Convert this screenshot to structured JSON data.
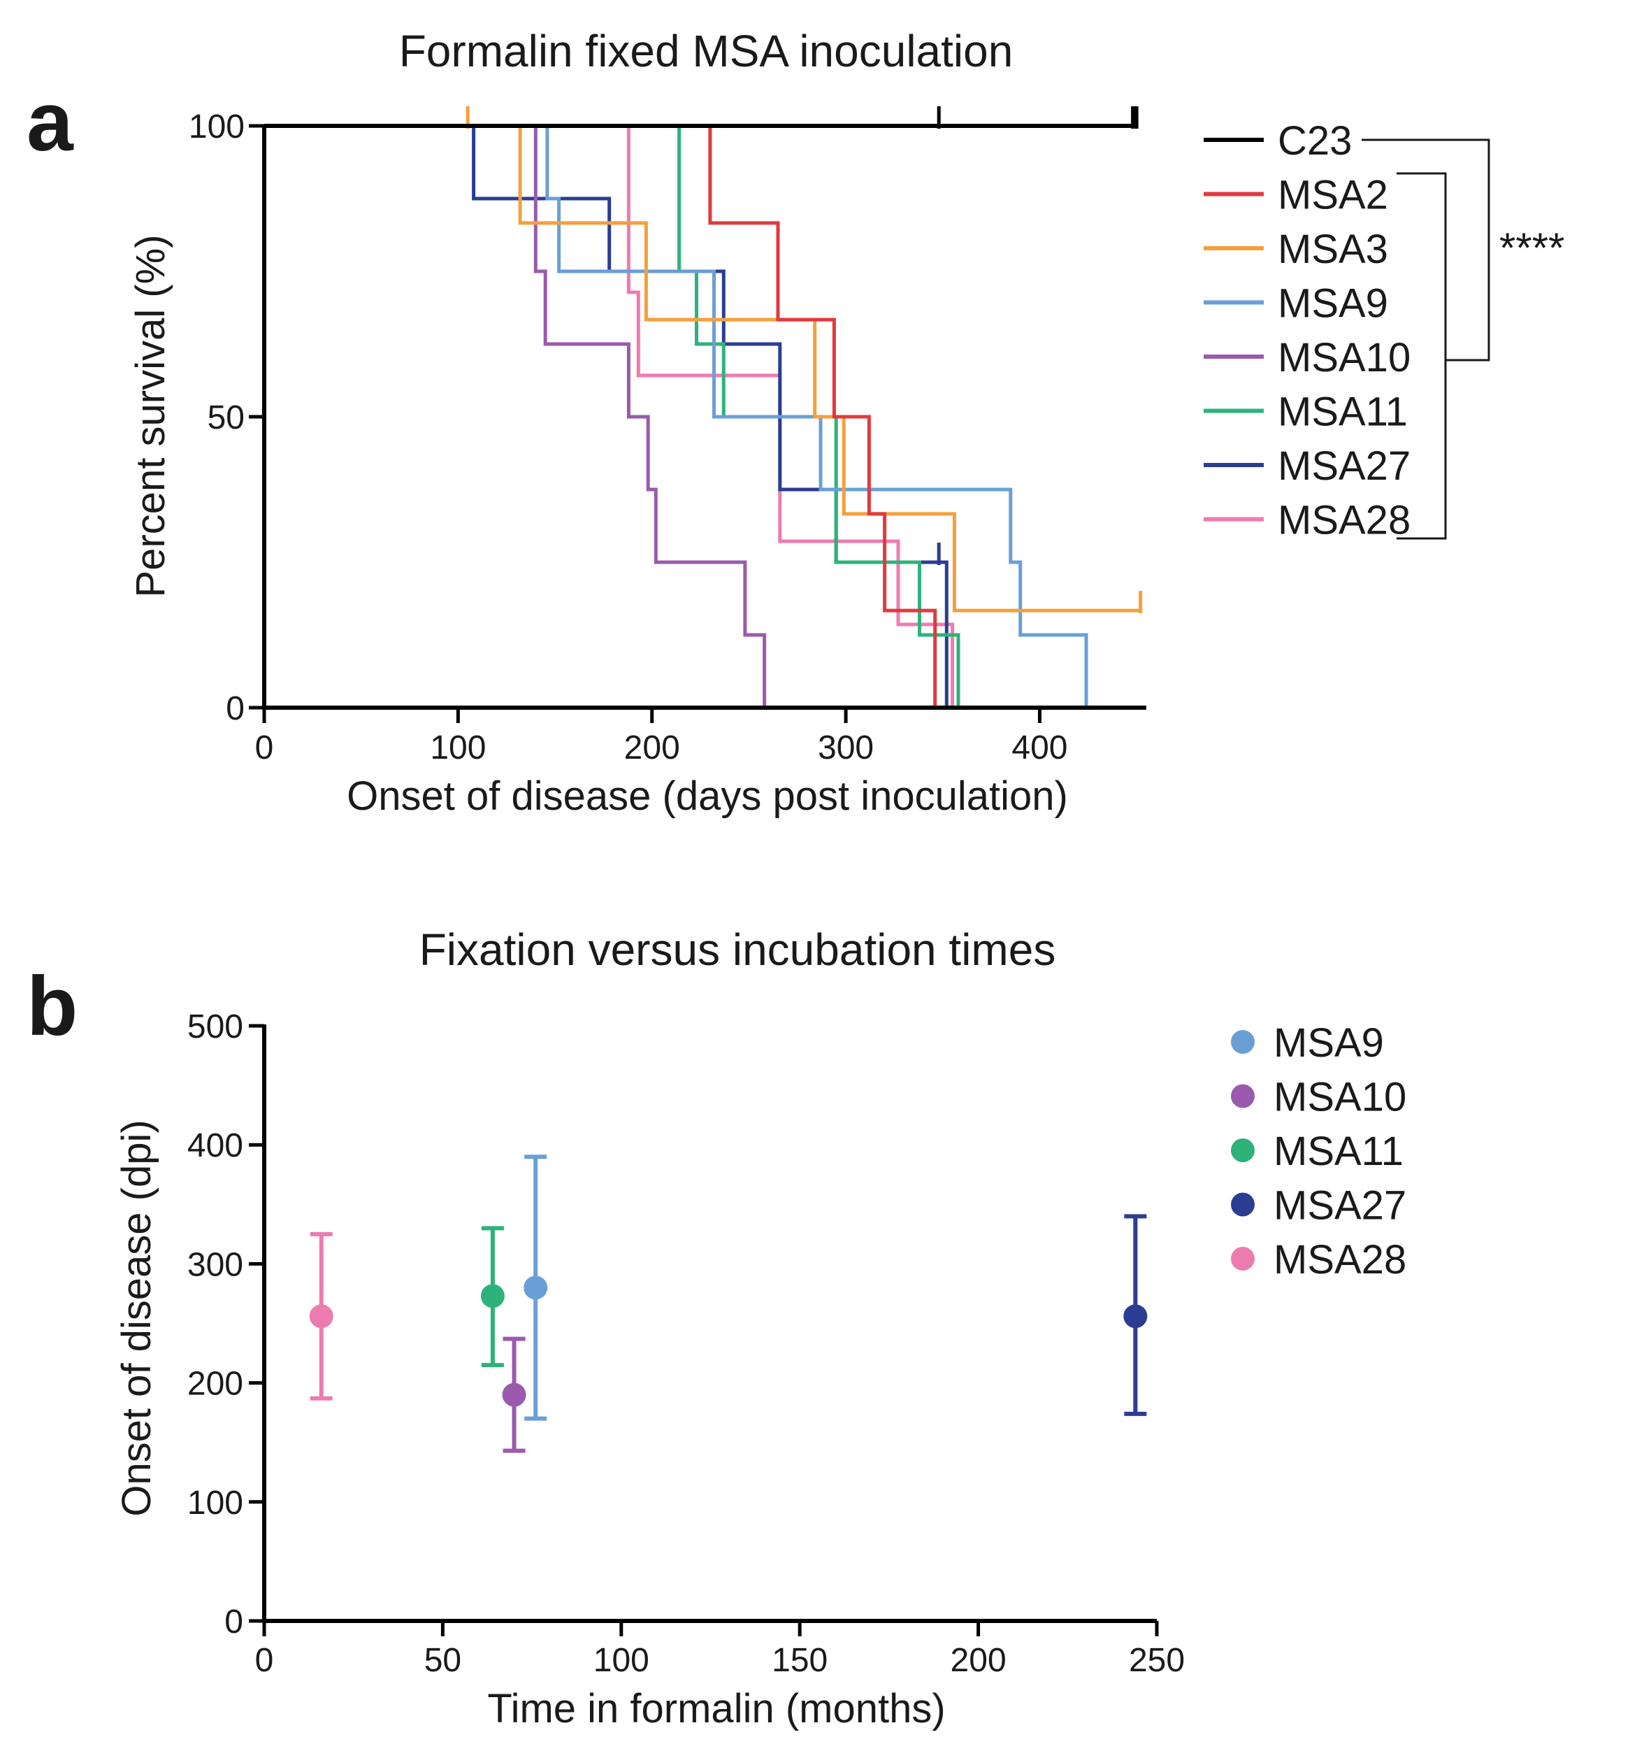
{
  "colors": {
    "C23": "#000000",
    "MSA2": "#e03a3e",
    "MSA3": "#f3a03c",
    "MSA9": "#6a9fd6",
    "MSA10": "#9a5aae",
    "MSA11": "#2db37a",
    "MSA27": "#2b3d92",
    "MSA28": "#ee7bb0"
  },
  "chart_data": [
    {
      "panel": "a",
      "type": "line",
      "subtype": "kaplan-meier step",
      "title": "Formalin fixed MSA inoculation",
      "xlabel": "Onset of disease  (days post inoculation)",
      "ylabel": "Percent survival (%)",
      "xlim": [
        0,
        455
      ],
      "ylim": [
        0,
        100
      ],
      "xticks": [
        0,
        100,
        200,
        300,
        400
      ],
      "yticks": [
        0,
        50,
        100
      ],
      "significance": "****",
      "series": [
        {
          "name": "C23",
          "points": [
            [
              0,
              100
            ],
            [
              450,
              100
            ]
          ],
          "censor": [
            [
              348,
              100
            ],
            [
              448,
              100
            ],
            [
              449,
              100
            ],
            [
              450,
              100
            ]
          ]
        },
        {
          "name": "MSA2",
          "points": [
            [
              0,
              100
            ],
            [
              230,
              100
            ],
            [
              230,
              83.3
            ],
            [
              265,
              83.3
            ],
            [
              265,
              66.7
            ],
            [
              294,
              66.7
            ],
            [
              294,
              50
            ],
            [
              312,
              50
            ],
            [
              312,
              33.3
            ],
            [
              320,
              33.3
            ],
            [
              320,
              16.7
            ],
            [
              346,
              16.7
            ],
            [
              346,
              0
            ]
          ],
          "censor": []
        },
        {
          "name": "MSA3",
          "points": [
            [
              0,
              100
            ],
            [
              132,
              100
            ],
            [
              132,
              83.3
            ],
            [
              197,
              83.3
            ],
            [
              197,
              66.7
            ],
            [
              284,
              66.7
            ],
            [
              284,
              50
            ],
            [
              299,
              50
            ],
            [
              299,
              33.3
            ],
            [
              356,
              33.3
            ],
            [
              356,
              16.7
            ],
            [
              452,
              16.7
            ]
          ],
          "censor": [
            [
              105,
              100
            ],
            [
              452,
              16.7
            ]
          ]
        },
        {
          "name": "MSA9",
          "points": [
            [
              0,
              100
            ],
            [
              146,
              100
            ],
            [
              146,
              87.5
            ],
            [
              152,
              87.5
            ],
            [
              152,
              75
            ],
            [
              232,
              75
            ],
            [
              232,
              50
            ],
            [
              287,
              50
            ],
            [
              287,
              37.5
            ],
            [
              385,
              37.5
            ],
            [
              385,
              25
            ],
            [
              390,
              25
            ],
            [
              390,
              12.5
            ],
            [
              424,
              12.5
            ],
            [
              424,
              0
            ]
          ],
          "censor": []
        },
        {
          "name": "MSA10",
          "points": [
            [
              0,
              100
            ],
            [
              140,
              100
            ],
            [
              140,
              75
            ],
            [
              145,
              75
            ],
            [
              145,
              62.5
            ],
            [
              188,
              62.5
            ],
            [
              188,
              50
            ],
            [
              198,
              50
            ],
            [
              198,
              37.5
            ],
            [
              202,
              37.5
            ],
            [
              202,
              25
            ],
            [
              248,
              25
            ],
            [
              248,
              12.5
            ],
            [
              258,
              12.5
            ],
            [
              258,
              0
            ]
          ],
          "censor": []
        },
        {
          "name": "MSA11",
          "points": [
            [
              0,
              100
            ],
            [
              214,
              100
            ],
            [
              214,
              75
            ],
            [
              223,
              75
            ],
            [
              223,
              62.5
            ],
            [
              237,
              62.5
            ],
            [
              237,
              50
            ],
            [
              295,
              50
            ],
            [
              295,
              25
            ],
            [
              338,
              25
            ],
            [
              338,
              12.5
            ],
            [
              358,
              12.5
            ],
            [
              358,
              0
            ]
          ],
          "censor": []
        },
        {
          "name": "MSA27",
          "points": [
            [
              0,
              100
            ],
            [
              108,
              100
            ],
            [
              108,
              87.5
            ],
            [
              178,
              87.5
            ],
            [
              178,
              75
            ],
            [
              237,
              75
            ],
            [
              237,
              62.5
            ],
            [
              266,
              62.5
            ],
            [
              266,
              37.5
            ],
            [
              295,
              37.5
            ],
            [
              295,
              25
            ],
            [
              352,
              25
            ],
            [
              352,
              0
            ]
          ],
          "censor": [
            [
              348,
              25
            ]
          ]
        },
        {
          "name": "MSA28",
          "points": [
            [
              0,
              100
            ],
            [
              188,
              100
            ],
            [
              188,
              71.4
            ],
            [
              193,
              71.4
            ],
            [
              193,
              57.1
            ],
            [
              266,
              57.1
            ],
            [
              266,
              28.6
            ],
            [
              327,
              28.6
            ],
            [
              327,
              14.3
            ],
            [
              355,
              14.3
            ],
            [
              355,
              0
            ]
          ],
          "censor": []
        }
      ],
      "legend": [
        "C23",
        "MSA2",
        "MSA3",
        "MSA9",
        "MSA10",
        "MSA11",
        "MSA27",
        "MSA28"
      ]
    },
    {
      "panel": "b",
      "type": "scatter",
      "subtype": "mean with error bars",
      "title": "Fixation versus incubation times",
      "xlabel": "Time in formalin (months)",
      "ylabel": "Onset of disease (dpi)",
      "xlim": [
        0,
        250
      ],
      "ylim": [
        0,
        500
      ],
      "xticks": [
        0,
        50,
        100,
        150,
        200,
        250
      ],
      "yticks": [
        0,
        100,
        200,
        300,
        400,
        500
      ],
      "points": [
        {
          "name": "MSA28",
          "x": 16,
          "y": 256,
          "low": 187,
          "high": 325
        },
        {
          "name": "MSA11",
          "x": 64,
          "y": 273,
          "low": 215,
          "high": 330
        },
        {
          "name": "MSA10",
          "x": 70,
          "y": 190,
          "low": 143,
          "high": 237
        },
        {
          "name": "MSA9",
          "x": 76,
          "y": 280,
          "low": 170,
          "high": 390
        },
        {
          "name": "MSA27",
          "x": 244,
          "y": 256,
          "low": 174,
          "high": 340
        }
      ],
      "legend": [
        "MSA9",
        "MSA10",
        "MSA11",
        "MSA27",
        "MSA28"
      ]
    }
  ]
}
